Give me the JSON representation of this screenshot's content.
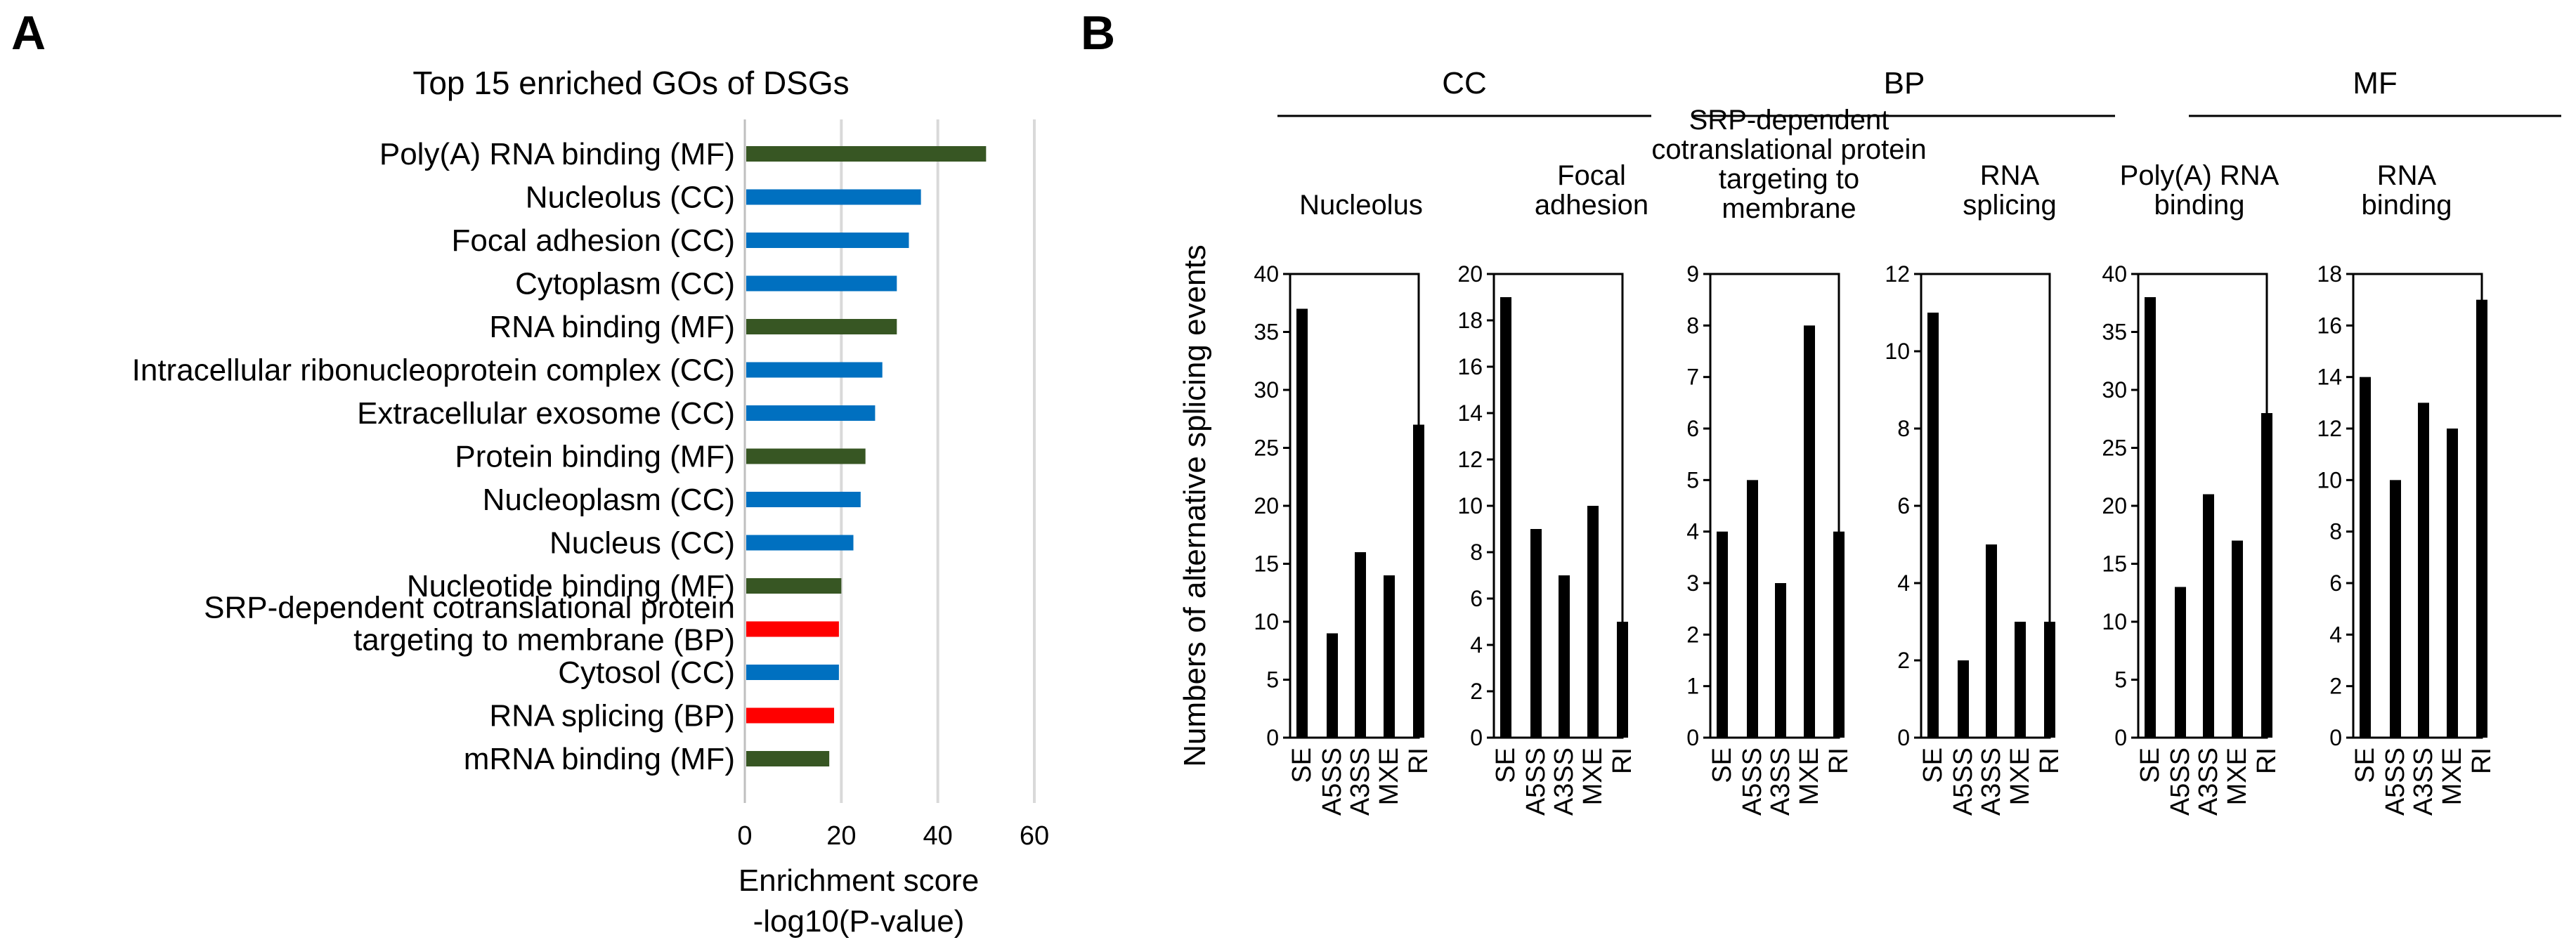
{
  "panels": {
    "a": "A",
    "b": "B"
  },
  "chart_data": [
    {
      "type": "bar",
      "orientation": "horizontal",
      "title": "Top 15 enriched GOs of DSGs",
      "xlabel": [
        "Enrichment score",
        "-log10(P-value)"
      ],
      "xlim": [
        0,
        60
      ],
      "xticks": [
        0,
        20,
        40,
        60
      ],
      "grid": true,
      "colors": {
        "MF": "#375623",
        "CC": "#0070C0",
        "BP": "#FF0000"
      },
      "categories": [
        [
          "Poly(A) RNA binding (MF)"
        ],
        [
          "Nucleolus (CC)"
        ],
        [
          "Focal adhesion (CC)"
        ],
        [
          "Cytoplasm (CC)"
        ],
        [
          "RNA binding (MF)"
        ],
        [
          "Intracellular ribonucleoprotein complex (CC)"
        ],
        [
          "Extracellular exosome (CC)"
        ],
        [
          "Protein binding (MF)"
        ],
        [
          "Nucleoplasm (CC)"
        ],
        [
          "Nucleus (CC)"
        ],
        [
          "Nucleotide binding (MF)"
        ],
        [
          "SRP-dependent cotranslational protein",
          "targeting to membrane (BP)"
        ],
        [
          "Cytosol (CC)"
        ],
        [
          "RNA splicing (BP)"
        ],
        [
          "mRNA binding (MF)"
        ]
      ],
      "types": [
        "MF",
        "CC",
        "CC",
        "CC",
        "MF",
        "CC",
        "CC",
        "MF",
        "CC",
        "CC",
        "MF",
        "BP",
        "CC",
        "BP",
        "MF"
      ],
      "values": [
        50,
        36.5,
        34,
        31.5,
        31.5,
        28.5,
        27,
        25,
        24,
        22.5,
        20,
        19.5,
        19.5,
        18.5,
        17.5
      ]
    },
    {
      "type": "bar",
      "ylabel": "Numbers of alternative splicing events",
      "categories": [
        "SE",
        "A5SS",
        "A3SS",
        "MXE",
        "RI"
      ],
      "groups": [
        {
          "label": "CC",
          "first": 0,
          "last": 1
        },
        {
          "label": "BP",
          "first": 2,
          "last": 3
        },
        {
          "label": "MF",
          "first": 4,
          "last": 5
        }
      ],
      "subplots": [
        {
          "title": [
            "Nucleolus"
          ],
          "ylim": [
            0,
            40
          ],
          "yticks": [
            0,
            5,
            10,
            15,
            20,
            25,
            30,
            35,
            40
          ],
          "values": [
            37,
            9,
            16,
            14,
            27
          ]
        },
        {
          "title": [
            "Focal",
            "adhesion"
          ],
          "ylim": [
            0,
            20
          ],
          "yticks": [
            0,
            2,
            4,
            6,
            8,
            10,
            12,
            14,
            16,
            18,
            20
          ],
          "values": [
            19,
            9,
            7,
            10,
            5
          ]
        },
        {
          "title": [
            "SRP-dependent",
            "cotranslational protein",
            "targeting to",
            "membrane"
          ],
          "ylim": [
            0,
            9
          ],
          "yticks": [
            0,
            1,
            2,
            3,
            4,
            5,
            6,
            7,
            8,
            9
          ],
          "values": [
            4,
            5,
            3,
            8,
            4
          ]
        },
        {
          "title": [
            "RNA",
            "splicing"
          ],
          "ylim": [
            0,
            12
          ],
          "yticks": [
            0,
            2,
            4,
            6,
            8,
            10,
            12
          ],
          "values": [
            11,
            2,
            5,
            3,
            3
          ]
        },
        {
          "title": [
            "Poly(A) RNA",
            "binding"
          ],
          "ylim": [
            0,
            40
          ],
          "yticks": [
            0,
            5,
            10,
            15,
            20,
            25,
            30,
            35,
            40
          ],
          "values": [
            38,
            13,
            21,
            17,
            28
          ]
        },
        {
          "title": [
            "RNA",
            "binding"
          ],
          "ylim": [
            0,
            18
          ],
          "yticks": [
            0,
            2,
            4,
            6,
            8,
            10,
            12,
            14,
            16,
            18
          ],
          "values": [
            14,
            10,
            13,
            12,
            17
          ]
        }
      ]
    }
  ]
}
